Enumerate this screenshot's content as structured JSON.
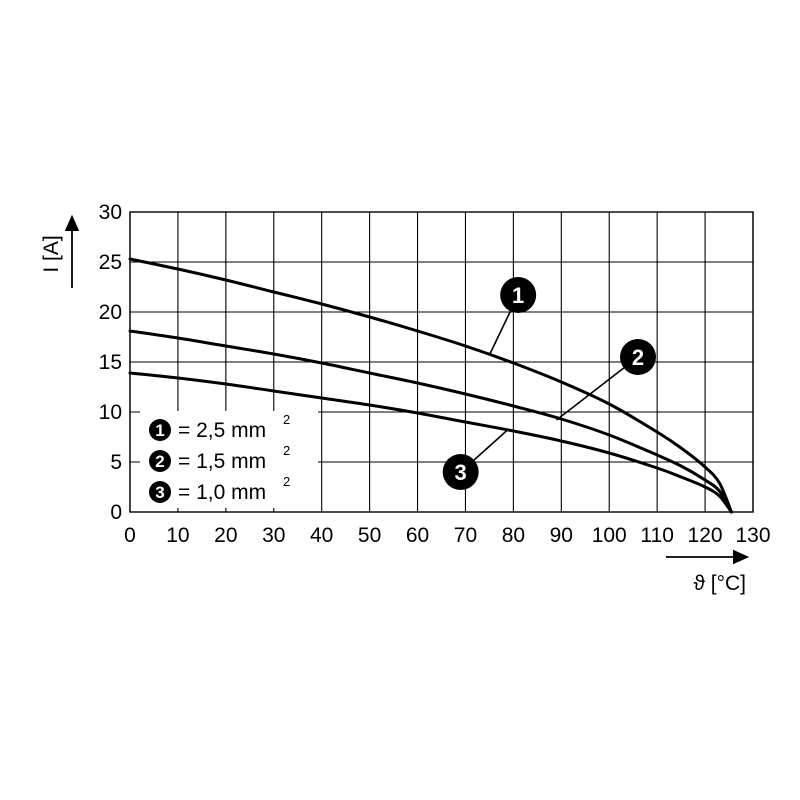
{
  "chart_data": {
    "type": "line",
    "title": "",
    "xlabel": "ϑ [°C]",
    "ylabel": "I [A]",
    "xlim": [
      0,
      130
    ],
    "ylim": [
      0,
      30
    ],
    "xticks": [
      0,
      10,
      20,
      30,
      40,
      50,
      60,
      70,
      80,
      90,
      100,
      110,
      120,
      130
    ],
    "yticks": [
      0,
      5,
      10,
      15,
      20,
      25,
      30
    ],
    "grid": true,
    "legend_placement": "bottom-left",
    "series": [
      {
        "id": "1",
        "name": "2,5 mm",
        "superscript": "2",
        "x": [
          0,
          10,
          20,
          30,
          40,
          50,
          60,
          70,
          80,
          90,
          100,
          110,
          115,
          120,
          123,
          125.5
        ],
        "y": [
          25.3,
          24.3,
          23.2,
          22.0,
          20.8,
          19.5,
          18.1,
          16.6,
          14.9,
          13.0,
          10.8,
          8.0,
          6.4,
          4.5,
          2.9,
          0
        ]
      },
      {
        "id": "2",
        "name": "1,5 mm",
        "superscript": "2",
        "x": [
          0,
          10,
          20,
          30,
          40,
          50,
          60,
          70,
          80,
          90,
          100,
          110,
          115,
          120,
          123,
          125.5
        ],
        "y": [
          18.1,
          17.4,
          16.6,
          15.8,
          14.9,
          13.9,
          12.9,
          11.8,
          10.6,
          9.3,
          7.7,
          5.7,
          4.6,
          3.2,
          2.1,
          0
        ]
      },
      {
        "id": "3",
        "name": "1,0 mm",
        "superscript": "2",
        "x": [
          0,
          10,
          20,
          30,
          40,
          50,
          60,
          70,
          80,
          90,
          100,
          110,
          115,
          120,
          123,
          125.5
        ],
        "y": [
          13.9,
          13.4,
          12.8,
          12.1,
          11.4,
          10.7,
          9.9,
          9.0,
          8.1,
          7.1,
          5.9,
          4.4,
          3.5,
          2.5,
          1.6,
          0
        ]
      }
    ],
    "callouts": [
      {
        "series": "1",
        "text": "1",
        "point": [
          75,
          15.7
        ],
        "label_at": [
          81,
          21.7
        ]
      },
      {
        "series": "2",
        "text": "2",
        "point": [
          89,
          9.2
        ],
        "label_at": [
          106,
          15.5
        ]
      },
      {
        "series": "3",
        "text": "3",
        "point": [
          79,
          8.3
        ],
        "label_at": [
          69,
          4.0
        ]
      }
    ],
    "colors": {
      "lines": "#000000",
      "grid": "#000000",
      "badge_fill": "#000000",
      "badge_text": "#ffffff"
    }
  }
}
